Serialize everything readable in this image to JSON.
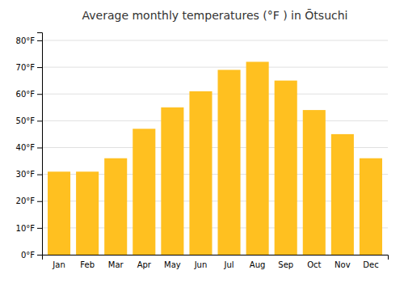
{
  "chart_data": {
    "type": "bar",
    "title": "Average monthly temperatures (°F ) in Ōtsuchi",
    "categories": [
      "Jan",
      "Feb",
      "Mar",
      "Apr",
      "May",
      "Jun",
      "Jul",
      "Aug",
      "Sep",
      "Oct",
      "Nov",
      "Dec"
    ],
    "values": [
      31,
      31,
      36,
      47,
      55,
      61,
      69,
      72,
      65,
      54,
      45,
      36
    ],
    "color": "#FFC020",
    "ylim": [
      0,
      83
    ],
    "yticks": [
      {
        "value": 0,
        "label": "0°F"
      },
      {
        "value": 10,
        "label": "10°F"
      },
      {
        "value": 20,
        "label": "20°F"
      },
      {
        "value": 30,
        "label": "30°F"
      },
      {
        "value": 40,
        "label": "40°F"
      },
      {
        "value": 50,
        "label": "50°F"
      },
      {
        "value": 60,
        "label": "60°F"
      },
      {
        "value": 70,
        "label": "70°F"
      },
      {
        "value": 80,
        "label": "80°F"
      }
    ],
    "grid": true
  }
}
